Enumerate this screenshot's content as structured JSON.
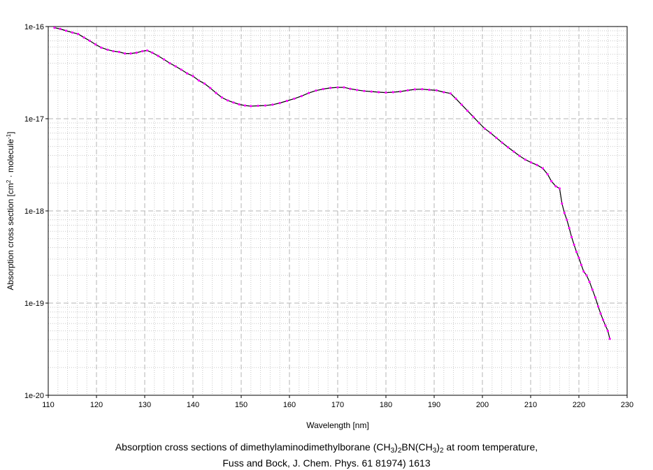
{
  "caption": {
    "line1_prefix": "Absorption cross sections of dimethylaminodimethylborane (CH",
    "sub_a": "3",
    "mid_a": ")",
    "sub_b": "2",
    "mid_b": "BN(CH",
    "sub_c": "3",
    "mid_c": ")",
    "sub_d": "2",
    "line1_suffix": " at room temperature,",
    "line2": "Fuss and Bock, J. Chem. Phys. 61 81974) 1613"
  },
  "chart_data": {
    "type": "line",
    "xlabel": "Wavelength [nm]",
    "ylabel_parts": [
      "Absorption cross section [cm",
      "2",
      " · molecule",
      "-1",
      "]"
    ],
    "xlim": [
      110,
      230
    ],
    "ylim": [
      1e-20,
      1e-16
    ],
    "yscale": "log",
    "grid": true,
    "legend": "none",
    "x_ticks": [
      110,
      120,
      130,
      140,
      150,
      160,
      170,
      180,
      190,
      200,
      210,
      220,
      230
    ],
    "x_tick_labels": [
      "110",
      "120",
      "130",
      "140",
      "150",
      "160",
      "170",
      "180",
      "190",
      "200",
      "210",
      "220",
      "230"
    ],
    "y_ticks": [
      1e-20,
      1e-19,
      1e-18,
      1e-17,
      1e-16
    ],
    "y_tick_labels": [
      "1e-20",
      "1e-19",
      "1e-18",
      "1e-17",
      "1e-16"
    ],
    "line_color": "#000000",
    "marker_color": "#ff00ff",
    "series": [
      {
        "x": [
          111.3,
          112.5,
          113.7,
          115.0,
          116.2,
          117.4,
          118.6,
          119.8,
          121.0,
          122.3,
          123.5,
          124.7,
          125.9,
          127.1,
          128.3,
          129.5,
          130.5,
          131.6,
          132.8,
          134.0,
          135.2,
          136.4,
          137.6,
          138.8,
          140.0,
          141.2,
          142.4,
          143.6,
          144.8,
          146.0,
          147.2,
          148.4,
          149.6,
          150.8,
          152.0,
          153.5,
          155.0,
          156.5,
          158.0,
          159.5,
          161.0,
          162.5,
          164.0,
          165.5,
          167.0,
          168.5,
          170.0,
          171.3,
          172.6,
          174.0,
          175.5,
          177.0,
          178.5,
          180.0,
          181.5,
          183.0,
          184.5,
          186.0,
          187.5,
          189.0,
          190.5,
          192.0,
          193.4,
          194.5,
          195.7,
          196.9,
          198.1,
          199.3,
          200.5,
          201.7,
          202.9,
          204.1,
          205.3,
          206.5,
          207.7,
          208.9,
          210.1,
          211.3,
          212.5,
          213.5,
          214.3,
          215.2,
          216.0,
          216.5,
          217.0,
          217.5,
          218.0,
          218.5,
          219.0,
          219.5,
          220.0,
          220.5,
          221.0,
          221.6,
          222.2,
          222.8,
          223.4,
          224.0,
          224.5,
          225.0,
          225.5,
          226.0,
          226.4
        ],
        "y": [
          9.7e-17,
          9.4e-17,
          9e-17,
          8.6e-17,
          8.3e-17,
          7.6e-17,
          7e-17,
          6.4e-17,
          5.9e-17,
          5.6e-17,
          5.4e-17,
          5.3e-17,
          5.1e-17,
          5.1e-17,
          5.2e-17,
          5.4e-17,
          5.5e-17,
          5.2e-17,
          4.8e-17,
          4.4e-17,
          4e-17,
          3.7e-17,
          3.4e-17,
          3.1e-17,
          2.9e-17,
          2.6e-17,
          2.4e-17,
          2.15e-17,
          1.9e-17,
          1.7e-17,
          1.58e-17,
          1.5e-17,
          1.43e-17,
          1.39e-17,
          1.37e-17,
          1.38e-17,
          1.39e-17,
          1.42e-17,
          1.48e-17,
          1.56e-17,
          1.65e-17,
          1.76e-17,
          1.9e-17,
          2.02e-17,
          2.1e-17,
          2.16e-17,
          2.19e-17,
          2.19e-17,
          2.11e-17,
          2.05e-17,
          2e-17,
          1.97e-17,
          1.94e-17,
          1.92e-17,
          1.94e-17,
          1.97e-17,
          2.03e-17,
          2.08e-17,
          2.09e-17,
          2.06e-17,
          2.03e-17,
          1.94e-17,
          1.88e-17,
          1.65e-17,
          1.42e-17,
          1.22e-17,
          1.05e-17,
          9e-18,
          7.8e-18,
          7e-18,
          6.2e-18,
          5.5e-18,
          4.9e-18,
          4.4e-18,
          3.95e-18,
          3.6e-18,
          3.35e-18,
          3.15e-18,
          2.9e-18,
          2.5e-18,
          2.1e-18,
          1.85e-18,
          1.75e-18,
          1.2e-18,
          9.5e-19,
          8e-19,
          6.5e-19,
          5.2e-19,
          4.3e-19,
          3.6e-19,
          3.1e-19,
          2.6e-19,
          2.2e-19,
          2e-19,
          1.7e-19,
          1.4e-19,
          1.15e-19,
          9.2e-20,
          7.7e-20,
          6.6e-20,
          5.7e-20,
          5e-20,
          4.1e-20
        ]
      }
    ]
  }
}
